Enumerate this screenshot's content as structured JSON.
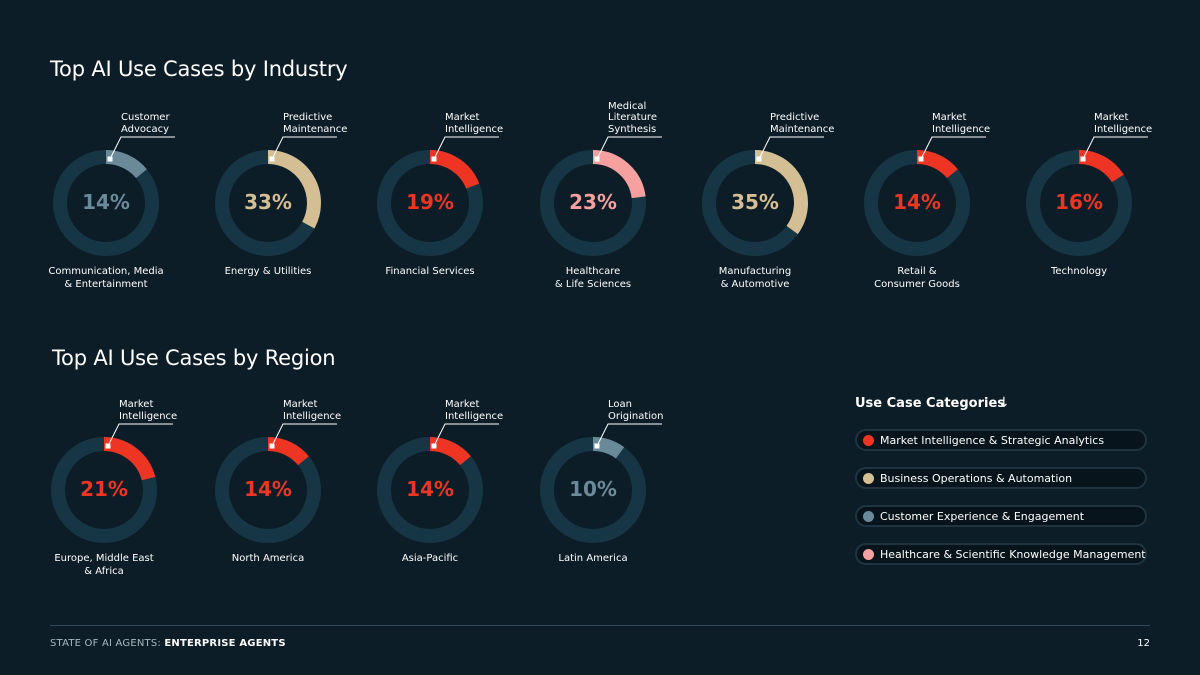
{
  "colors": {
    "background": "#0d1d27",
    "track": "#163645",
    "market_intelligence": "#ee3524",
    "business_operations": "#d4bf94",
    "customer_experience": "#6b8a99",
    "healthcare_knowledge": "#f7a0a0"
  },
  "industry_title": "Top AI Use Cases by Industry",
  "region_title": "Top AI Use Cases by Region",
  "chart_data": [
    {
      "type": "pie",
      "title": "Top AI Use Cases by Industry",
      "series": [
        {
          "category": "Communication, Media\n& Entertainment",
          "top_use_case": "Customer\nAdvocacy",
          "value": 14,
          "label": "14%",
          "color_key": "customer_experience"
        },
        {
          "category": "Energy & Utilities",
          "top_use_case": "Predictive\nMaintenance",
          "value": 33,
          "label": "33%",
          "color_key": "business_operations"
        },
        {
          "category": "Financial Services",
          "top_use_case": "Market\nIntelligence",
          "value": 19,
          "label": "19%",
          "color_key": "market_intelligence"
        },
        {
          "category": "Healthcare\n& Life Sciences",
          "top_use_case": "Medical\nLiterature\nSynthesis",
          "value": 23,
          "label": "23%",
          "color_key": "healthcare_knowledge"
        },
        {
          "category": "Manufacturing\n& Automotive",
          "top_use_case": "Predictive\nMaintenance",
          "value": 35,
          "label": "35%",
          "color_key": "business_operations"
        },
        {
          "category": "Retail &\nConsumer Goods",
          "top_use_case": "Market\nIntelligence",
          "value": 14,
          "label": "14%",
          "color_key": "market_intelligence"
        },
        {
          "category": "Technology",
          "top_use_case": "Market\nIntelligence",
          "value": 16,
          "label": "16%",
          "color_key": "market_intelligence"
        }
      ]
    },
    {
      "type": "pie",
      "title": "Top AI Use Cases by Region",
      "series": [
        {
          "category": "Europe, Middle East\n& Africa",
          "top_use_case": "Market\nIntelligence",
          "value": 21,
          "label": "21%",
          "color_key": "market_intelligence"
        },
        {
          "category": "North America",
          "top_use_case": "Market\nIntelligence",
          "value": 14,
          "label": "14%",
          "color_key": "market_intelligence"
        },
        {
          "category": "Asia-Pacific",
          "top_use_case": "Market\nIntelligence",
          "value": 14,
          "label": "14%",
          "color_key": "market_intelligence"
        },
        {
          "category": "Latin America",
          "top_use_case": "Loan\nOrigination",
          "value": 10,
          "label": "10%",
          "color_key": "customer_experience"
        }
      ]
    }
  ],
  "legend": {
    "title": "Use Case Categories",
    "arrow": "↓",
    "items": [
      {
        "label": "Market Intelligence & Strategic Analytics",
        "color_key": "market_intelligence"
      },
      {
        "label": "Business Operations & Automation",
        "color_key": "business_operations"
      },
      {
        "label": "Customer Experience & Engagement",
        "color_key": "customer_experience"
      },
      {
        "label": "Healthcare & Scientific Knowledge Management",
        "color_key": "healthcare_knowledge"
      }
    ]
  },
  "footer": {
    "prefix": "STATE OF AI AGENTS: ",
    "suffix": "ENTERPRISE AGENTS",
    "page_number": "12"
  }
}
